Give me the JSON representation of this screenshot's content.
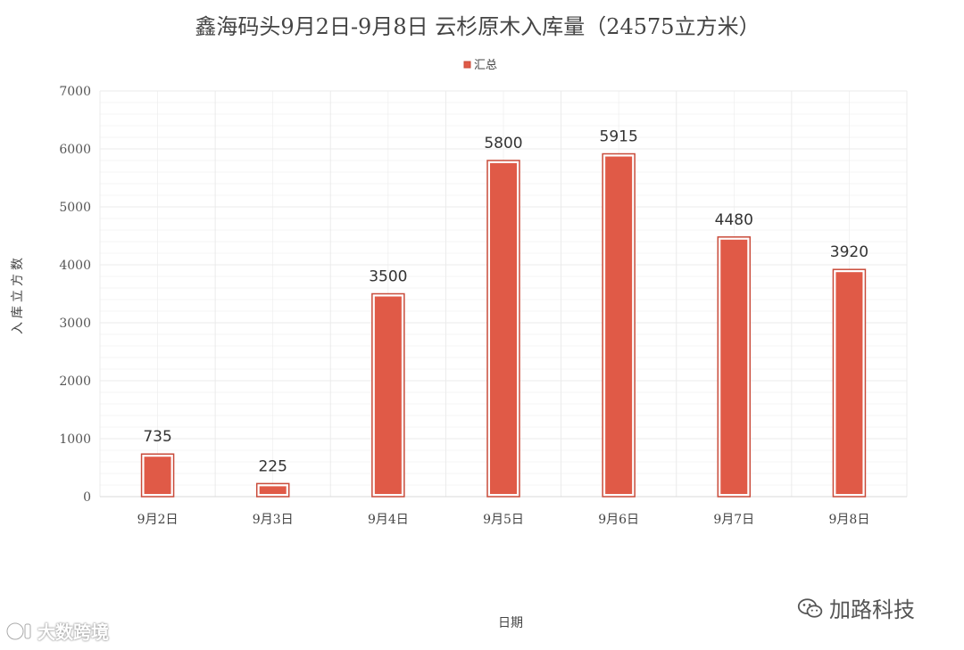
{
  "chart_data": {
    "type": "bar",
    "title": "鑫海码头9月2日-9月8日  云杉原木入库量（24575立方米）",
    "legend": [
      "汇总"
    ],
    "legend_position": "top",
    "xlabel": "日期",
    "ylabel": "入库立方数",
    "ylim": [
      0,
      7000
    ],
    "yticks": [
      "0",
      "1000",
      "2000",
      "3000",
      "4000",
      "5000",
      "6000",
      "7000"
    ],
    "categories": [
      "9月2日",
      "9月3日",
      "9月4日",
      "9月5日",
      "9月6日",
      "9月7日",
      "9月8日"
    ],
    "series": [
      {
        "name": "汇总",
        "values": [
          735,
          225,
          3500,
          5800,
          5915,
          4480,
          3920
        ]
      }
    ],
    "data_labels": [
      "735",
      "225",
      "3500",
      "5800",
      "5915",
      "4480",
      "3920"
    ],
    "grid": true,
    "colors": {
      "bar": "#E05A47",
      "bar_outline": "#C94B3A",
      "grid": "#EBEBEB"
    }
  },
  "watermarks": {
    "left": "大数跨境",
    "right": "加路科技"
  }
}
